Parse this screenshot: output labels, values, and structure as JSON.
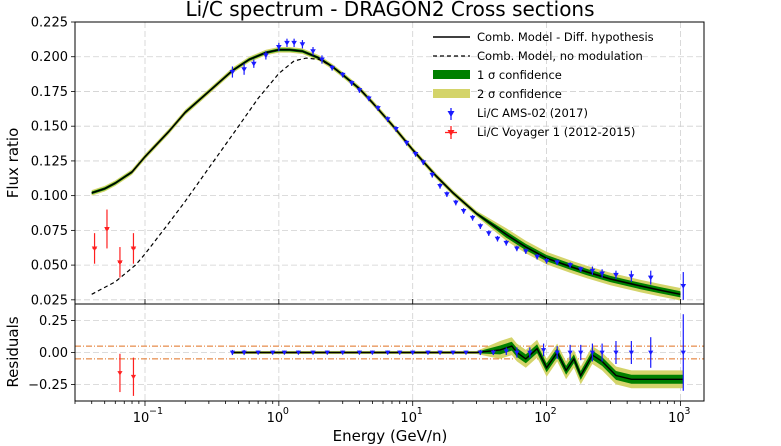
{
  "chart_data": {
    "type": "line",
    "title": "Li/C spectrum - DRAGON2 Cross sections",
    "xlabel": "Energy (GeV/n)",
    "xscale": "log",
    "xlim": [
      0.03,
      1500
    ],
    "x_tick_labels": [
      "10",
      "10",
      "10",
      "10",
      "10"
    ],
    "x_tick_exponents": [
      "−1",
      "0",
      "1",
      "2",
      "3"
    ],
    "x_tick_values": [
      0.1,
      1,
      10,
      100,
      1000
    ],
    "top_panel": {
      "ylabel": "Flux ratio",
      "ylim": [
        0.022,
        0.225
      ],
      "y_ticks": [
        "0.025",
        "0.050",
        "0.075",
        "0.100",
        "0.125",
        "0.150",
        "0.175",
        "0.200",
        "0.225"
      ],
      "series": [
        {
          "name": "Comb. Model - Diff. hypothesis",
          "style": "solid",
          "color": "#000000",
          "x": [
            0.04,
            0.05,
            0.06,
            0.08,
            0.1,
            0.15,
            0.2,
            0.3,
            0.45,
            0.6,
            0.8,
            1.0,
            1.2,
            1.5,
            2.0,
            2.5,
            3,
            4,
            5,
            7,
            10,
            15,
            20,
            30,
            50,
            70,
            100,
            150,
            200,
            300,
            500,
            700,
            1000
          ],
          "y": [
            0.102,
            0.105,
            0.109,
            0.117,
            0.128,
            0.146,
            0.16,
            0.175,
            0.19,
            0.198,
            0.203,
            0.205,
            0.205,
            0.204,
            0.199,
            0.193,
            0.187,
            0.177,
            0.167,
            0.151,
            0.133,
            0.114,
            0.102,
            0.087,
            0.072,
            0.063,
            0.055,
            0.049,
            0.045,
            0.04,
            0.035,
            0.032,
            0.029
          ]
        },
        {
          "name": "Comb. Model, no modulation",
          "style": "dashed",
          "color": "#000000",
          "x": [
            0.04,
            0.06,
            0.085,
            0.1,
            0.15,
            0.2,
            0.3,
            0.5,
            0.7,
            1.0,
            1.3,
            1.6,
            2.0,
            2.5,
            3,
            4,
            5,
            7,
            10,
            15,
            20
          ],
          "y": [
            0.029,
            0.038,
            0.05,
            0.058,
            0.08,
            0.096,
            0.12,
            0.15,
            0.17,
            0.188,
            0.197,
            0.199,
            0.198,
            0.193,
            0.187,
            0.177,
            0.167,
            0.151,
            0.133,
            0.114,
            0.102
          ]
        }
      ],
      "bands": [
        {
          "name": "1 σ confidence",
          "color": "#008000"
        },
        {
          "name": "2 σ confidence",
          "color": "#d4d46a"
        }
      ],
      "data_sets": [
        {
          "name": "Li/C AMS-02 (2017)",
          "color": "#1a1aff",
          "x": [
            0.45,
            0.55,
            0.65,
            0.8,
            1.0,
            1.15,
            1.3,
            1.5,
            1.8,
            2.1,
            2.5,
            3.0,
            3.5,
            4.0,
            4.7,
            5.5,
            6.5,
            7.5,
            9,
            10.5,
            12,
            14,
            16,
            18,
            21,
            24,
            28,
            32,
            37,
            43,
            50,
            60,
            70,
            85,
            100,
            120,
            150,
            180,
            220,
            260,
            330,
            430,
            600,
            1050
          ],
          "y": [
            0.189,
            0.191,
            0.195,
            0.201,
            0.207,
            0.21,
            0.21,
            0.209,
            0.204,
            0.198,
            0.192,
            0.187,
            0.181,
            0.176,
            0.17,
            0.163,
            0.155,
            0.148,
            0.138,
            0.13,
            0.124,
            0.115,
            0.107,
            0.101,
            0.095,
            0.089,
            0.084,
            0.078,
            0.073,
            0.069,
            0.066,
            0.062,
            0.06,
            0.056,
            0.053,
            0.052,
            0.05,
            0.047,
            0.046,
            0.044,
            0.043,
            0.042,
            0.041,
            0.035
          ],
          "err": [
            0.004,
            0.004,
            0.003,
            0.003,
            0.003,
            0.003,
            0.003,
            0.003,
            0.003,
            0.003,
            0.002,
            0.002,
            0.002,
            0.002,
            0.002,
            0.002,
            0.002,
            0.002,
            0.002,
            0.002,
            0.002,
            0.002,
            0.002,
            0.002,
            0.002,
            0.002,
            0.002,
            0.002,
            0.002,
            0.002,
            0.002,
            0.002,
            0.002,
            0.002,
            0.002,
            0.002,
            0.002,
            0.002,
            0.003,
            0.003,
            0.003,
            0.004,
            0.005,
            0.01
          ]
        },
        {
          "name": "Li/C Voyager 1 (2012-2015)",
          "color": "#ff2020",
          "x": [
            0.042,
            0.052,
            0.065,
            0.082
          ],
          "y": [
            0.062,
            0.076,
            0.052,
            0.062
          ],
          "err": [
            0.011,
            0.014,
            0.011,
            0.011
          ]
        }
      ]
    },
    "bottom_panel": {
      "ylabel": "Residuals",
      "ylim": [
        -0.38,
        0.38
      ],
      "y_ticks": [
        "0.25",
        "0.00",
        "−0.25"
      ],
      "reference_lines": [
        0.05,
        -0.05
      ],
      "model_residual": {
        "x": [
          0.45,
          1,
          3,
          10,
          30,
          45,
          55,
          60,
          70,
          85,
          100,
          120,
          140,
          160,
          180,
          220,
          260,
          330,
          430,
          600,
          1050
        ],
        "y": [
          0.0,
          0.0,
          0.0,
          0.0,
          0.0,
          0.02,
          0.05,
          0.0,
          -0.05,
          0.03,
          -0.12,
          0.0,
          -0.14,
          -0.05,
          -0.18,
          -0.02,
          -0.07,
          -0.18,
          -0.21,
          -0.21,
          -0.21
        ]
      },
      "data_sets": [
        {
          "name": "Li/C AMS-02 (2017)",
          "x": [
            0.45,
            0.55,
            0.7,
            0.9,
            1.1,
            1.4,
            1.8,
            2.3,
            3,
            4,
            5,
            6.5,
            8,
            10,
            13,
            16,
            20,
            25,
            32,
            40,
            50,
            60,
            75,
            95,
            120,
            150,
            180,
            220,
            260,
            330,
            430,
            600,
            1050
          ],
          "y": [
            0.0,
            0.0,
            0.0,
            0.0,
            0.0,
            0.0,
            0.0,
            0.0,
            0.0,
            0.0,
            0.0,
            0.0,
            0.0,
            0.0,
            0.0,
            0.0,
            0.0,
            0.0,
            0.0,
            0.0,
            0.01,
            0.0,
            0.0,
            0.02,
            0.0,
            0.0,
            0.0,
            0.0,
            0.0,
            0.0,
            0.0,
            0.0,
            0.0
          ],
          "err": [
            0.02,
            0.02,
            0.015,
            0.015,
            0.015,
            0.015,
            0.015,
            0.015,
            0.015,
            0.015,
            0.015,
            0.015,
            0.015,
            0.015,
            0.015,
            0.015,
            0.015,
            0.015,
            0.02,
            0.02,
            0.03,
            0.04,
            0.04,
            0.05,
            0.05,
            0.06,
            0.06,
            0.07,
            0.07,
            0.09,
            0.09,
            0.12,
            0.3
          ]
        },
        {
          "name": "Li/C Voyager 1 (2012-2015)",
          "x": [
            0.065,
            0.082
          ],
          "y": [
            -0.16,
            -0.19
          ],
          "err": [
            0.15,
            0.15
          ]
        }
      ]
    }
  }
}
